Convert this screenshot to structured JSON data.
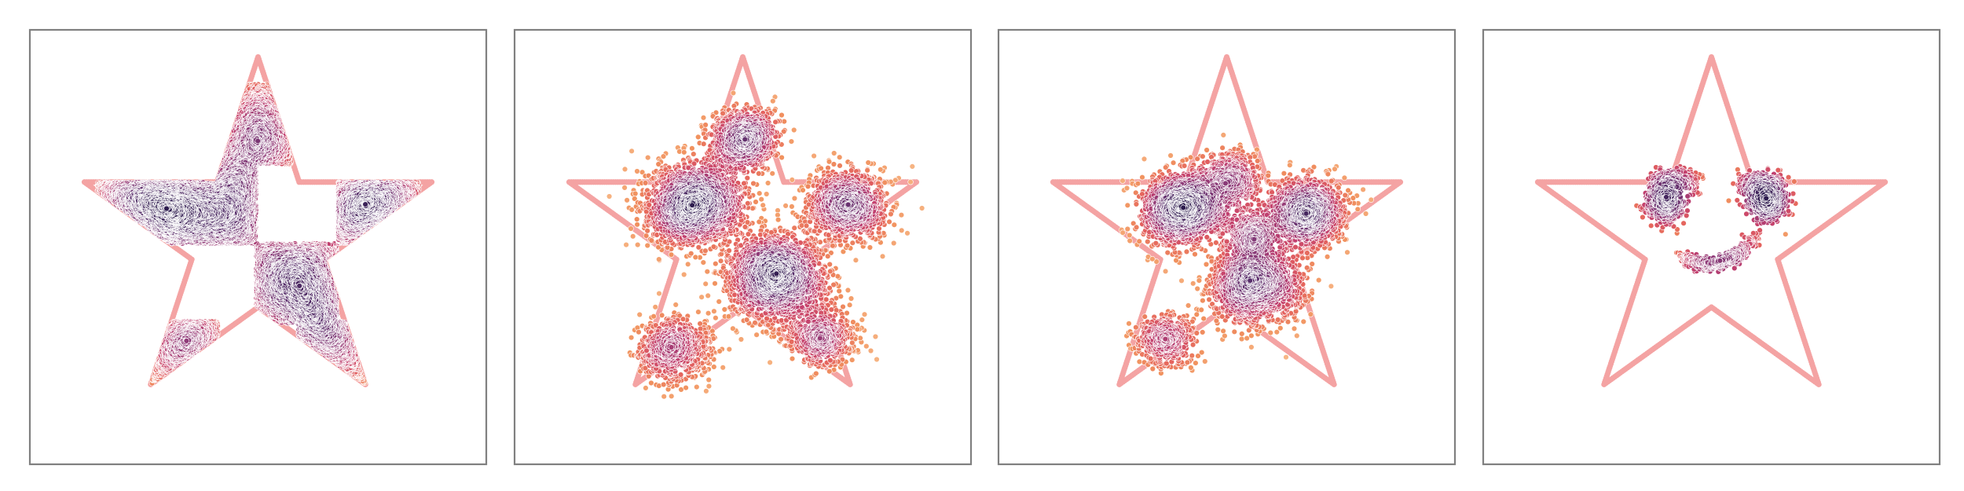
{
  "figure": {
    "background": "#ffffff",
    "frame_color": "#808080"
  },
  "chart_data": [
    {
      "type": "scatter",
      "title": "",
      "xlabel": "",
      "ylabel": "",
      "xlim": [
        -1.25,
        1.25
      ],
      "ylim": [
        -1.25,
        1.15
      ],
      "grid": false,
      "axis_ticks": false,
      "boundary": {
        "shape": "five-pointed star outline",
        "color": "#f4a3a3",
        "outer_vertices": [
          [
            0.0,
            1.0
          ],
          [
            0.951,
            0.309
          ],
          [
            0.588,
            -0.809
          ],
          [
            -0.588,
            -0.809
          ],
          [
            -0.951,
            0.309
          ]
        ],
        "inner_vertices": [
          [
            0.225,
            0.309
          ],
          [
            0.363,
            -0.118
          ],
          [
            0.0,
            -0.382
          ],
          [
            -0.363,
            -0.118
          ],
          [
            -0.225,
            0.309
          ]
        ]
      },
      "colormap": [
        "#2d1c4e",
        "#5a2f6c",
        "#8e3a78",
        "#c2406f",
        "#e4625e",
        "#f1925f",
        "#f7b887"
      ],
      "density_stage": "sharp",
      "clusters": [
        {
          "kind": "square",
          "center": [
            -0.23,
            0.19
          ],
          "half_size": 0.22,
          "weight": 1.0
        },
        {
          "kind": "square",
          "center": [
            0.21,
            -0.25
          ],
          "half_size": 0.22,
          "weight": 1.0
        },
        {
          "kind": "square",
          "center": [
            0.0,
            0.63
          ],
          "half_size": 0.22,
          "weight": 0.5
        },
        {
          "kind": "square",
          "center": [
            0.66,
            0.19
          ],
          "half_size": 0.22,
          "weight": 0.7
        },
        {
          "kind": "square",
          "center": [
            -0.66,
            0.19
          ],
          "half_size": 0.22,
          "weight": 0.7
        },
        {
          "kind": "square",
          "center": [
            -0.44,
            -0.68
          ],
          "half_size": 0.22,
          "weight": 0.35
        },
        {
          "kind": "square",
          "center": [
            0.44,
            -0.68
          ],
          "half_size": 0.22,
          "weight": 0.35
        }
      ]
    },
    {
      "type": "scatter",
      "title": "",
      "xlabel": "",
      "ylabel": "",
      "xlim": [
        -1.25,
        1.25
      ],
      "ylim": [
        -1.25,
        1.15
      ],
      "grid": false,
      "axis_ticks": false,
      "boundary": {
        "shape": "five-pointed star outline",
        "color": "#f4a3a3",
        "outer_vertices": [
          [
            0.0,
            1.0
          ],
          [
            0.951,
            0.309
          ],
          [
            0.588,
            -0.809
          ],
          [
            -0.588,
            -0.809
          ],
          [
            -0.951,
            0.309
          ]
        ],
        "inner_vertices": [
          [
            0.225,
            0.309
          ],
          [
            0.363,
            -0.118
          ],
          [
            0.0,
            -0.382
          ],
          [
            -0.363,
            -0.118
          ],
          [
            -0.225,
            0.309
          ]
        ]
      },
      "colormap": [
        "#2d1c4e",
        "#5a2f6c",
        "#8e3a78",
        "#c2406f",
        "#e4625e",
        "#f1925f",
        "#f7b887"
      ],
      "density_stage": "blurred",
      "clusters": [
        {
          "kind": "gauss",
          "center": [
            -0.26,
            0.19
          ],
          "spread": 0.13,
          "weight": 1.0
        },
        {
          "kind": "gauss",
          "center": [
            0.18,
            -0.22
          ],
          "spread": 0.13,
          "weight": 1.0
        },
        {
          "kind": "gauss",
          "center": [
            0.0,
            0.55
          ],
          "spread": 0.09,
          "weight": 0.45
        },
        {
          "kind": "gauss",
          "center": [
            0.57,
            0.18
          ],
          "spread": 0.11,
          "weight": 0.55
        },
        {
          "kind": "gauss",
          "center": [
            -0.37,
            -0.62
          ],
          "spread": 0.1,
          "weight": 0.35
        },
        {
          "kind": "gauss",
          "center": [
            0.43,
            -0.55
          ],
          "spread": 0.09,
          "weight": 0.3
        }
      ]
    },
    {
      "type": "scatter",
      "title": "",
      "xlabel": "",
      "ylabel": "",
      "xlim": [
        -1.25,
        1.25
      ],
      "ylim": [
        -1.25,
        1.15
      ],
      "grid": false,
      "axis_ticks": false,
      "boundary": {
        "shape": "five-pointed star outline",
        "color": "#f4a3a3",
        "outer_vertices": [
          [
            0.0,
            1.0
          ],
          [
            0.951,
            0.309
          ],
          [
            0.588,
            -0.809
          ],
          [
            -0.588,
            -0.809
          ],
          [
            -0.951,
            0.309
          ]
        ],
        "inner_vertices": [
          [
            0.225,
            0.309
          ],
          [
            0.363,
            -0.118
          ],
          [
            0.0,
            -0.382
          ],
          [
            -0.363,
            -0.118
          ],
          [
            -0.225,
            0.309
          ]
        ]
      },
      "colormap": [
        "#2d1c4e",
        "#5a2f6c",
        "#8e3a78",
        "#c2406f",
        "#e4625e",
        "#f1925f",
        "#f7b887"
      ],
      "density_stage": "clustered",
      "clusters": [
        {
          "kind": "gauss",
          "center": [
            -0.24,
            0.16
          ],
          "spread": 0.11,
          "weight": 1.0
        },
        {
          "kind": "gauss",
          "center": [
            0.44,
            0.14
          ],
          "spread": 0.1,
          "weight": 0.75
        },
        {
          "kind": "gauss",
          "center": [
            0.14,
            -0.26
          ],
          "spread": 0.12,
          "weight": 0.9
        },
        {
          "kind": "gauss",
          "center": [
            0.02,
            0.33
          ],
          "spread": 0.09,
          "weight": 0.35
        },
        {
          "kind": "gauss",
          "center": [
            -0.33,
            -0.56
          ],
          "spread": 0.08,
          "weight": 0.3
        },
        {
          "kind": "gauss",
          "center": [
            0.13,
            0.02
          ],
          "spread": 0.07,
          "weight": 0.3
        }
      ]
    },
    {
      "type": "scatter",
      "title": "",
      "xlabel": "",
      "ylabel": "",
      "xlim": [
        -1.25,
        1.25
      ],
      "ylim": [
        -1.25,
        1.15
      ],
      "grid": false,
      "axis_ticks": false,
      "boundary": {
        "shape": "five-pointed star outline",
        "color": "#f4a3a3",
        "outer_vertices": [
          [
            0.0,
            1.0
          ],
          [
            0.951,
            0.309
          ],
          [
            0.588,
            -0.809
          ],
          [
            -0.588,
            -0.809
          ],
          [
            -0.951,
            0.309
          ]
        ],
        "inner_vertices": [
          [
            0.225,
            0.309
          ],
          [
            0.363,
            -0.118
          ],
          [
            0.0,
            -0.382
          ],
          [
            -0.363,
            -0.118
          ],
          [
            -0.225,
            0.309
          ]
        ]
      },
      "colormap": [
        "#2d1c4e",
        "#5a2f6c",
        "#8e3a78",
        "#c2406f",
        "#e4625e",
        "#f1925f",
        "#f7b887"
      ],
      "density_stage": "smiley-face",
      "clusters": [
        {
          "kind": "gauss",
          "center": [
            -0.25,
            0.19
          ],
          "spread": 0.055,
          "weight": 0.45
        },
        {
          "kind": "gauss",
          "center": [
            0.31,
            0.19
          ],
          "spread": 0.055,
          "weight": 0.45
        },
        {
          "kind": "brow",
          "center": [
            -0.2,
            0.29
          ],
          "spread": 0.12,
          "weight": 0.3
        },
        {
          "kind": "brow",
          "center": [
            0.27,
            0.27
          ],
          "spread": 0.12,
          "weight": 0.3
        },
        {
          "kind": "arc",
          "center": [
            0.04,
            -0.05
          ],
          "spread": 0.2,
          "weight": 0.55
        }
      ]
    }
  ]
}
